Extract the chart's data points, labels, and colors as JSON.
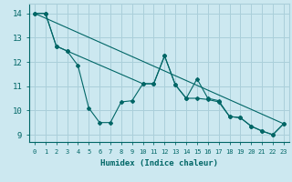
{
  "xlabel": "Humidex (Indice chaleur)",
  "ylabel": "",
  "xlim": [
    -0.5,
    23.5
  ],
  "ylim": [
    8.7,
    14.4
  ],
  "background_color": "#cce8f0",
  "grid_color": "#aacfda",
  "line_color": "#006666",
  "series1": {
    "x": [
      0,
      1,
      2,
      3,
      4,
      5,
      6,
      7,
      8,
      9,
      10,
      11,
      12,
      13,
      14,
      15,
      16,
      17,
      18,
      19,
      20,
      21,
      22,
      23
    ],
    "y": [
      14.0,
      14.0,
      12.65,
      12.45,
      11.85,
      10.1,
      9.5,
      9.5,
      10.35,
      10.4,
      11.1,
      11.1,
      12.25,
      11.05,
      10.5,
      11.3,
      10.5,
      10.4,
      9.75,
      9.7,
      9.35,
      9.15,
      9.0,
      9.45
    ]
  },
  "series2": {
    "x": [
      0,
      1,
      2,
      3,
      10,
      11,
      12,
      13,
      14,
      15,
      16,
      17,
      18,
      19,
      20,
      21,
      22,
      23
    ],
    "y": [
      14.0,
      14.0,
      12.65,
      12.45,
      11.1,
      11.1,
      12.25,
      11.05,
      10.5,
      10.5,
      10.45,
      10.35,
      9.75,
      9.7,
      9.35,
      9.15,
      9.0,
      9.45
    ]
  },
  "series3": {
    "x": [
      0,
      23
    ],
    "y": [
      14.0,
      9.45
    ]
  }
}
